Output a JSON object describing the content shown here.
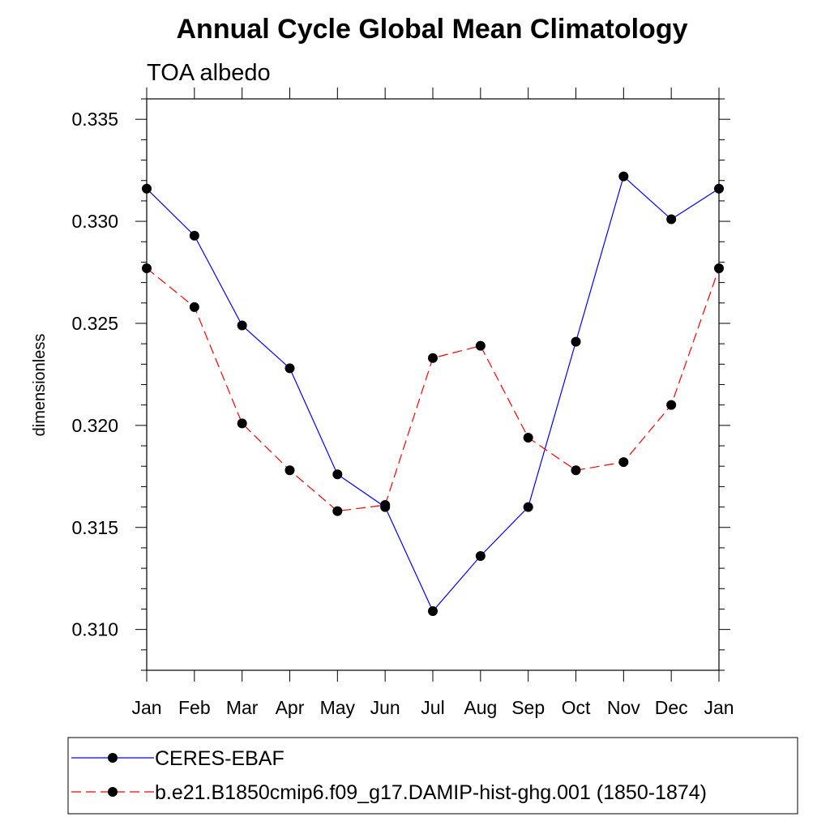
{
  "chart_data": {
    "type": "line",
    "title": "Annual Cycle Global Mean Climatology",
    "subtitle": "TOA albedo",
    "xlabel": "",
    "ylabel": "dimensionless",
    "categories": [
      "Jan",
      "Feb",
      "Mar",
      "Apr",
      "May",
      "Jun",
      "Jul",
      "Aug",
      "Sep",
      "Oct",
      "Nov",
      "Dec",
      "Jan"
    ],
    "ylim": [
      0.308,
      0.336
    ],
    "yticks": [
      0.31,
      0.315,
      0.32,
      0.325,
      0.33,
      0.335
    ],
    "ytick_labels": [
      "0.310",
      "0.315",
      "0.320",
      "0.325",
      "0.330",
      "0.335"
    ],
    "grid": false,
    "legend_position": "bottom",
    "series": [
      {
        "name": "CERES-EBAF",
        "color": "#0000ff",
        "line_style": "solid",
        "marker": "filled-circle",
        "values": [
          0.3316,
          0.3293,
          0.3249,
          0.3228,
          0.3176,
          0.316,
          0.3109,
          0.3136,
          0.316,
          0.3241,
          0.3322,
          0.3301,
          0.3316
        ]
      },
      {
        "name": "b.e21.B1850cmip6.f09_g17.DAMIP-hist-ghg.001 (1850-1874)",
        "color": "#ff0000",
        "line_style": "dashed",
        "marker": "filled-circle",
        "values": [
          0.3277,
          0.3258,
          0.3201,
          0.3178,
          0.3158,
          0.3161,
          0.3233,
          0.3239,
          0.3194,
          0.3178,
          0.3182,
          0.321,
          0.3277
        ]
      }
    ]
  }
}
